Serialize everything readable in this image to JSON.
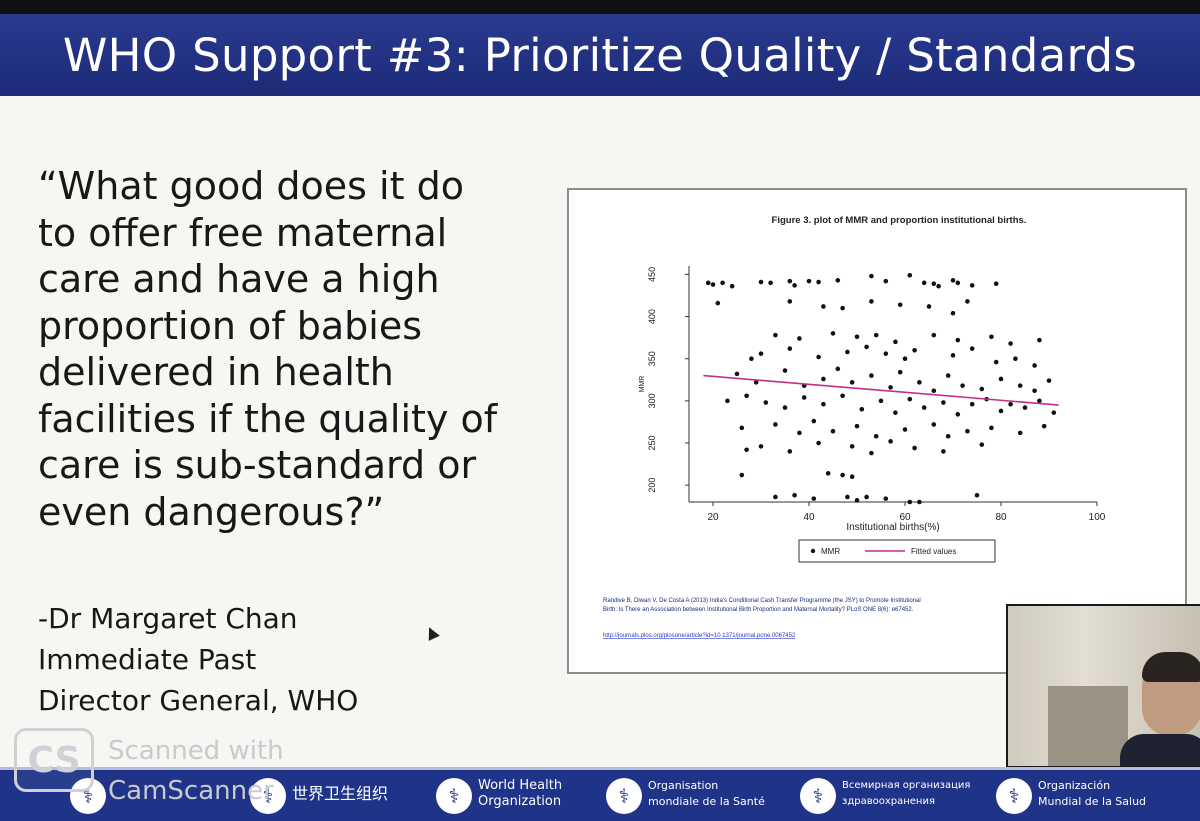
{
  "slide": {
    "title": "WHO Support #3: Prioritize Quality / Standards",
    "quote_lines": [
      "“What good does it do",
      "to offer free maternal",
      "care and have a high",
      "proportion of babies",
      "delivered in health",
      "facilities if the quality of",
      "care is sub-standard or",
      "even dangerous?”"
    ],
    "attribution": [
      "-Dr Margaret Chan",
      "Immediate Past",
      "Director General, WHO"
    ]
  },
  "chart_data": {
    "type": "scatter",
    "title": "Figure 3. plot of MMR and proportion institutional births.",
    "xlabel": "Institutional births(%)",
    "ylabel": "MMR",
    "xlim": [
      15,
      100
    ],
    "ylim": [
      180,
      460
    ],
    "xticks": [
      20,
      40,
      60,
      80,
      100
    ],
    "yticks": [
      200,
      250,
      300,
      350,
      400,
      450
    ],
    "legend": [
      "MMR",
      "Fitted values"
    ],
    "legend_position": "bottom",
    "fitted_line": {
      "x": [
        18,
        92
      ],
      "y": [
        330,
        295
      ],
      "color": "#c22f8c"
    },
    "points": [
      [
        19,
        440
      ],
      [
        20,
        438
      ],
      [
        22,
        440
      ],
      [
        24,
        436
      ],
      [
        30,
        441
      ],
      [
        32,
        440
      ],
      [
        36,
        442
      ],
      [
        37,
        437
      ],
      [
        40,
        442
      ],
      [
        42,
        441
      ],
      [
        46,
        443
      ],
      [
        53,
        448
      ],
      [
        56,
        442
      ],
      [
        61,
        449
      ],
      [
        64,
        440
      ],
      [
        66,
        439
      ],
      [
        67,
        436
      ],
      [
        70,
        443
      ],
      [
        71,
        440
      ],
      [
        74,
        437
      ],
      [
        79,
        439
      ],
      [
        21,
        416
      ],
      [
        36,
        418
      ],
      [
        43,
        412
      ],
      [
        47,
        410
      ],
      [
        53,
        418
      ],
      [
        59,
        414
      ],
      [
        65,
        412
      ],
      [
        73,
        418
      ],
      [
        70,
        404
      ],
      [
        33,
        378
      ],
      [
        38,
        374
      ],
      [
        45,
        380
      ],
      [
        50,
        376
      ],
      [
        54,
        378
      ],
      [
        58,
        370
      ],
      [
        66,
        378
      ],
      [
        71,
        372
      ],
      [
        78,
        376
      ],
      [
        82,
        368
      ],
      [
        88,
        372
      ],
      [
        28,
        350
      ],
      [
        30,
        356
      ],
      [
        36,
        362
      ],
      [
        42,
        352
      ],
      [
        48,
        358
      ],
      [
        52,
        364
      ],
      [
        56,
        356
      ],
      [
        60,
        350
      ],
      [
        62,
        360
      ],
      [
        70,
        354
      ],
      [
        74,
        362
      ],
      [
        79,
        346
      ],
      [
        83,
        350
      ],
      [
        87,
        342
      ],
      [
        25,
        332
      ],
      [
        29,
        322
      ],
      [
        35,
        336
      ],
      [
        39,
        318
      ],
      [
        43,
        326
      ],
      [
        46,
        338
      ],
      [
        49,
        322
      ],
      [
        53,
        330
      ],
      [
        57,
        316
      ],
      [
        59,
        334
      ],
      [
        63,
        322
      ],
      [
        66,
        312
      ],
      [
        69,
        330
      ],
      [
        72,
        318
      ],
      [
        76,
        314
      ],
      [
        80,
        326
      ],
      [
        84,
        318
      ],
      [
        87,
        312
      ],
      [
        90,
        324
      ],
      [
        23,
        300
      ],
      [
        27,
        306
      ],
      [
        31,
        298
      ],
      [
        35,
        292
      ],
      [
        39,
        304
      ],
      [
        43,
        296
      ],
      [
        47,
        306
      ],
      [
        51,
        290
      ],
      [
        55,
        300
      ],
      [
        58,
        286
      ],
      [
        61,
        302
      ],
      [
        64,
        292
      ],
      [
        68,
        298
      ],
      [
        71,
        284
      ],
      [
        74,
        296
      ],
      [
        77,
        302
      ],
      [
        80,
        288
      ],
      [
        82,
        296
      ],
      [
        85,
        292
      ],
      [
        88,
        300
      ],
      [
        91,
        286
      ],
      [
        26,
        268
      ],
      [
        33,
        272
      ],
      [
        38,
        262
      ],
      [
        41,
        276
      ],
      [
        45,
        264
      ],
      [
        50,
        270
      ],
      [
        54,
        258
      ],
      [
        60,
        266
      ],
      [
        66,
        272
      ],
      [
        69,
        258
      ],
      [
        73,
        264
      ],
      [
        78,
        268
      ],
      [
        84,
        262
      ],
      [
        89,
        270
      ],
      [
        27,
        242
      ],
      [
        30,
        246
      ],
      [
        36,
        240
      ],
      [
        42,
        250
      ],
      [
        49,
        246
      ],
      [
        53,
        238
      ],
      [
        57,
        252
      ],
      [
        62,
        244
      ],
      [
        68,
        240
      ],
      [
        76,
        248
      ],
      [
        26,
        212
      ],
      [
        44,
        214
      ],
      [
        47,
        212
      ],
      [
        49,
        210
      ],
      [
        33,
        186
      ],
      [
        37,
        188
      ],
      [
        41,
        184
      ],
      [
        48,
        186
      ],
      [
        50,
        182
      ],
      [
        52,
        186
      ],
      [
        56,
        184
      ],
      [
        61,
        180
      ],
      [
        63,
        180
      ],
      [
        75,
        188
      ]
    ],
    "source_text": "Randive B, Diwan V, De Costa A (2013) India's Conditional Cash Transfer Programme (the JSY) to Promote Institutional Birth: Is There an Association between Institutional Birth Proportion and Maternal Mortality? PLoS ONE 8(6): e67452.",
    "source_link": "http://journals.plos.org/plosone/article?id=10.1371/journal.pone.0067452"
  },
  "footer": {
    "cs_logo": "CS",
    "watermark_lines": [
      "Scanned with",
      "CamScanner"
    ],
    "orgs": [
      {
        "text": "世界卫生组织",
        "icon": "who-emblem-icon"
      },
      {
        "text": "World Health Organization",
        "icon": "who-emblem-icon"
      },
      {
        "text": "Organisation mondiale de la Santé",
        "icon": "who-emblem-icon"
      },
      {
        "text": "Всемирная организация здравоохранения",
        "icon": "who-emblem-icon"
      },
      {
        "text": "Organización Mundial de la Salud",
        "icon": "who-emblem-icon"
      }
    ]
  },
  "colors": {
    "header_blue": "#1f2e80",
    "footer_blue": "#1f3488",
    "fit_line": "#c22f8c"
  }
}
